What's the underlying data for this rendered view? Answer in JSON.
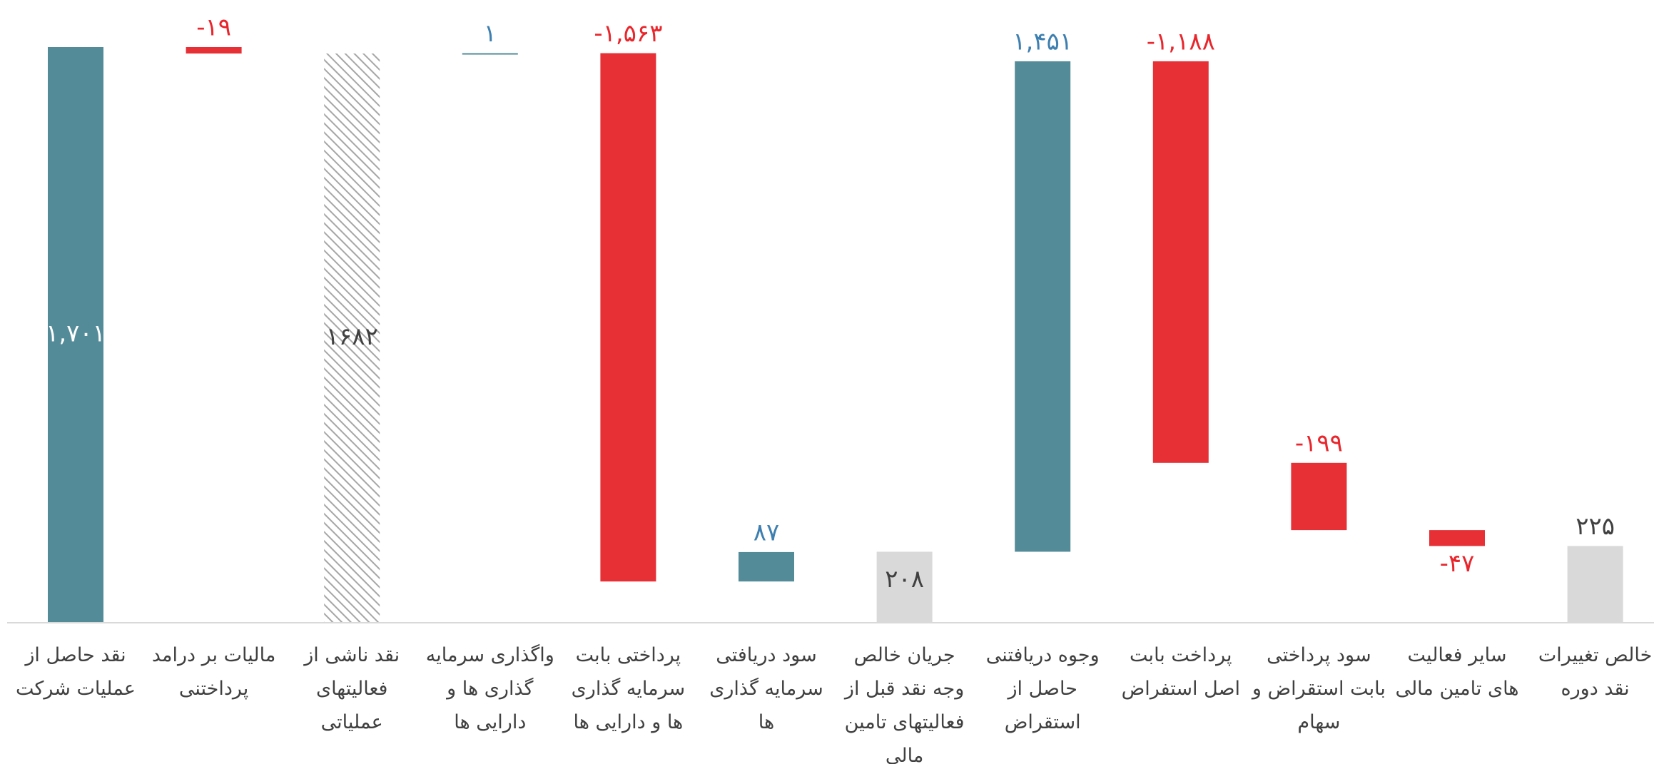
{
  "chart_data": {
    "type": "waterfall",
    "categories": [
      "نقد حاصل از عملیات شرکت",
      "مالیات بر درامد پرداختنی",
      "نقد  ناشی از فعالیتهای عملیاتی",
      "واگذاری سرمایه گذاری ها و دارایی ها",
      "پرداختی  بابت سرمایه گذاری ها و دارایی ها",
      "سود دریافتی سرمایه گذاری ها",
      "جریان خالص وجه نقد قبل از فعالیتهای تامین مالی",
      "وجوه دریافتنی حاصل از استقراض",
      "پرداخت  بابت اصل استفراض",
      "سود پرداختی بابت استقراض و سهام",
      "سایر فعالیت های تامین مالی",
      "خالص تغییرات نقد دوره"
    ],
    "values": [
      1701,
      -19,
      1682,
      1,
      -1563,
      87,
      208,
      1451,
      -1188,
      -199,
      -47,
      225
    ],
    "value_labels": [
      "۱,۷۰۱",
      "-۱۹",
      "۱۶۸۲",
      "۱",
      "-۱,۵۶۳",
      "۸۷",
      "۲۰۸",
      "۱,۴۵۱",
      "-۱,۱۸۸",
      "-۱۹۹",
      "-۴۷",
      "۲۲۵"
    ],
    "kinds": [
      "step",
      "step",
      "hatched-total",
      "step",
      "step",
      "step",
      "total",
      "step",
      "step",
      "step",
      "step",
      "total"
    ],
    "increase_color": "#548b98",
    "decrease_color": "#e63036",
    "total_color": "#d9d9d9",
    "hatch_color": "#a6a6a6"
  }
}
